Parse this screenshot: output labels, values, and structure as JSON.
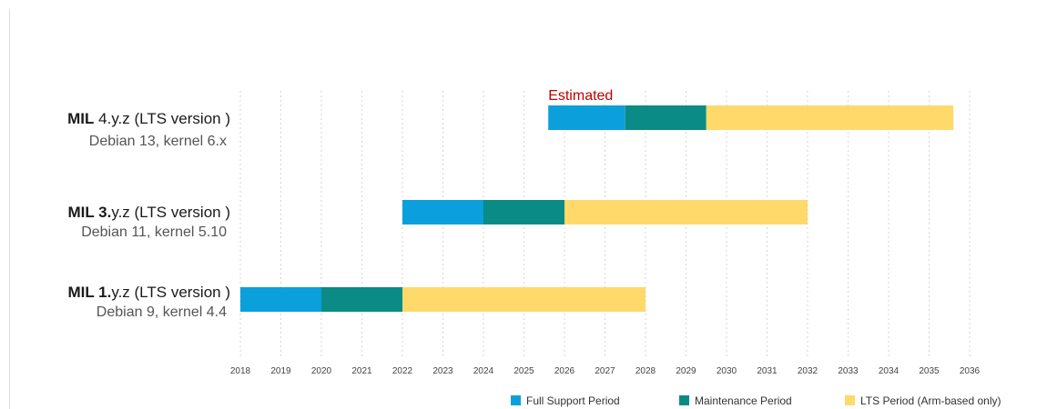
{
  "chart_data": {
    "type": "bar",
    "orientation": "horizontal",
    "stacked": true,
    "x_unit": "year",
    "x_ticks": [
      "2018",
      "2019",
      "2020",
      "2021",
      "2022",
      "2023",
      "2024",
      "2025",
      "2026",
      "2027",
      "2028",
      "2029",
      "2030",
      "2031",
      "2032",
      "2033",
      "2034",
      "2035",
      "2036"
    ],
    "xlim": [
      2018,
      2036
    ],
    "grid": "vertical dotted lines at each year",
    "legend_position": "bottom",
    "legend": [
      {
        "key": "full",
        "label": "Full Support Period",
        "color": "#0b9fdc"
      },
      {
        "key": "maint",
        "label": "Maintenance Period",
        "color": "#0a8b85"
      },
      {
        "key": "lts",
        "label": "LTS Period (Arm-based only)",
        "color": "#ffd96a"
      }
    ],
    "annotations": [
      {
        "text": "Estimated",
        "color": "#c00000",
        "anchor_row": 0,
        "anchor_x": 2025.6
      }
    ],
    "rows": [
      {
        "name_bold": "MIL",
        "name_rest": " 4.y.z (LTS version )",
        "subtitle": "Debian 13, kernel 6.x",
        "segments": [
          {
            "period": "full",
            "start": 2025.6,
            "end": 2027.5
          },
          {
            "period": "maint",
            "start": 2027.5,
            "end": 2029.5
          },
          {
            "period": "lts",
            "start": 2029.5,
            "end": 2035.6
          }
        ]
      },
      {
        "name_bold": "MIL 3.",
        "name_rest": "y.z (LTS version )",
        "subtitle": "Debian 11, kernel 5.10",
        "segments": [
          {
            "period": "full",
            "start": 2022.0,
            "end": 2024.0
          },
          {
            "period": "maint",
            "start": 2024.0,
            "end": 2026.0
          },
          {
            "period": "lts",
            "start": 2026.0,
            "end": 2032.0
          }
        ]
      },
      {
        "name_bold": "MIL 1.",
        "name_rest": "y.z (LTS version )",
        "subtitle": "Debian 9, kernel 4.4",
        "segments": [
          {
            "period": "full",
            "start": 2018.0,
            "end": 2020.0
          },
          {
            "period": "maint",
            "start": 2020.0,
            "end": 2022.0
          },
          {
            "period": "lts",
            "start": 2022.0,
            "end": 2028.0
          }
        ]
      }
    ]
  }
}
